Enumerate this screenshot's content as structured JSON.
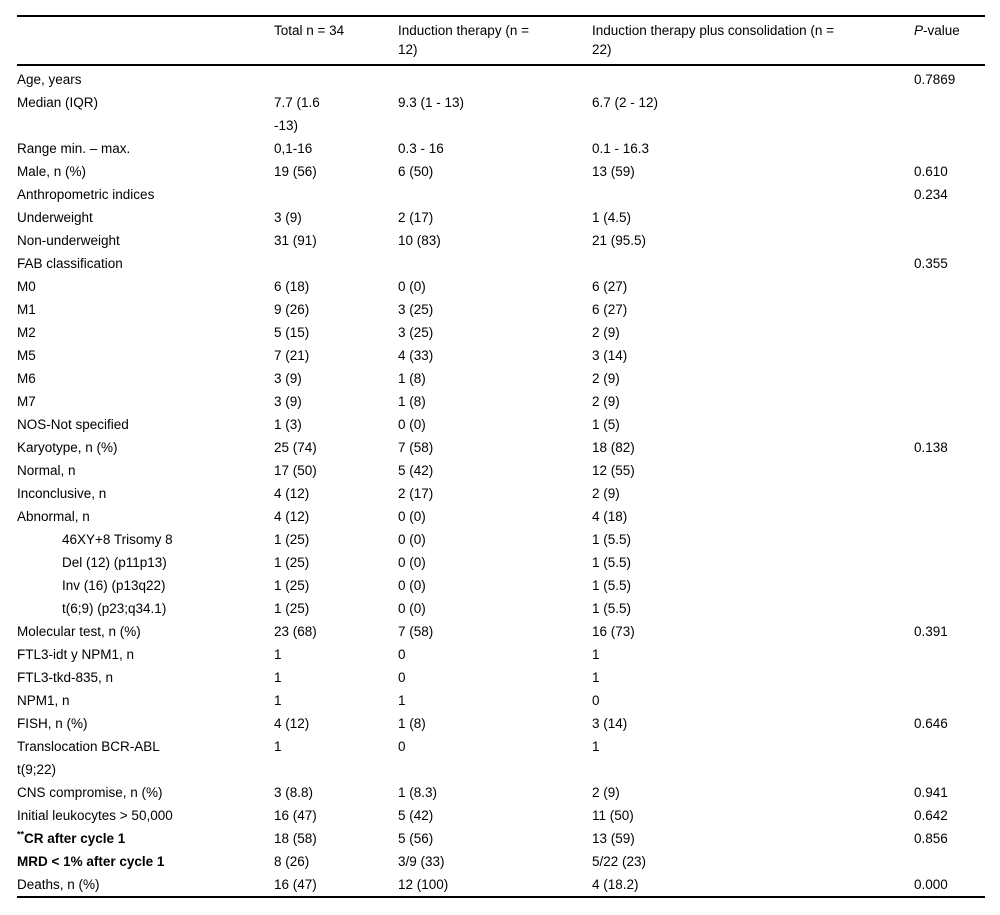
{
  "table": {
    "columns": {
      "label": "",
      "total": "Total n = 34",
      "induction": "Induction therapy (n =\n12)",
      "consolidation": "Induction therapy plus consolidation (n =\n22)"
    },
    "p_header": {
      "italic": "P",
      "rest": "-value"
    },
    "rows": [
      {
        "label": "Age, years",
        "total": "",
        "induction": "",
        "consolidation": "",
        "p": "0.7869"
      },
      {
        "label": "Median (IQR)",
        "total": "7.7 (1.6\n-13)",
        "induction": "9.3 (1 - 13)",
        "consolidation": "6.7 (2 - 12)",
        "p": ""
      },
      {
        "label": "Range min. – max.",
        "total": "0,1-16",
        "induction": "0.3 - 16",
        "consolidation": "0.1 - 16.3",
        "p": ""
      },
      {
        "label": "Male, n (%)",
        "total": "19 (56)",
        "induction": "6 (50)",
        "consolidation": "13 (59)",
        "p": "0.610"
      },
      {
        "label": "Anthropometric indices",
        "total": "",
        "induction": "",
        "consolidation": "",
        "p": "0.234"
      },
      {
        "label": "Underweight",
        "total": "3 (9)",
        "induction": "2 (17)",
        "consolidation": "1 (4.5)",
        "p": ""
      },
      {
        "label": "Non-underweight",
        "total": "31 (91)",
        "induction": "10 (83)",
        "consolidation": "21 (95.5)",
        "p": ""
      },
      {
        "label": "FAB classification",
        "total": "",
        "induction": "",
        "consolidation": "",
        "p": "0.355"
      },
      {
        "label": "M0",
        "total": "6 (18)",
        "induction": "0 (0)",
        "consolidation": "6 (27)",
        "p": ""
      },
      {
        "label": "M1",
        "total": "9 (26)",
        "induction": "3 (25)",
        "consolidation": "6 (27)",
        "p": ""
      },
      {
        "label": "M2",
        "total": "5 (15)",
        "induction": "3 (25)",
        "consolidation": "2 (9)",
        "p": ""
      },
      {
        "label": "M5",
        "total": "7 (21)",
        "induction": "4 (33)",
        "consolidation": "3 (14)",
        "p": ""
      },
      {
        "label": "M6",
        "total": "3 (9)",
        "induction": "1 (8)",
        "consolidation": "2 (9)",
        "p": ""
      },
      {
        "label": "M7",
        "total": "3 (9)",
        "induction": "1 (8)",
        "consolidation": "2 (9)",
        "p": ""
      },
      {
        "label": "NOS-Not specified",
        "total": "1 (3)",
        "induction": "0 (0)",
        "consolidation": "1 (5)",
        "p": ""
      },
      {
        "label": "Karyotype, n (%)",
        "total": "25 (74)",
        "induction": "7 (58)",
        "consolidation": "18 (82)",
        "p": "0.138"
      },
      {
        "label": "Normal, n",
        "total": "17 (50)",
        "induction": "5 (42)",
        "consolidation": "12 (55)",
        "p": ""
      },
      {
        "label": "Inconclusive, n",
        "total": "4 (12)",
        "induction": "2 (17)",
        "consolidation": "2 (9)",
        "p": ""
      },
      {
        "label": "Abnormal, n",
        "total": "4 (12)",
        "induction": "0 (0)",
        "consolidation": "4 (18)",
        "p": ""
      },
      {
        "label": "46XY+8 Trisomy 8",
        "indent": true,
        "total": "1 (25)",
        "induction": "0 (0)",
        "consolidation": "1 (5.5)",
        "p": ""
      },
      {
        "label": "Del (12) (p11p13)",
        "indent": true,
        "total": "1 (25)",
        "induction": "0 (0)",
        "consolidation": "1 (5.5)",
        "p": ""
      },
      {
        "label": "Inv (16) (p13q22)",
        "indent": true,
        "total": "1 (25)",
        "induction": "0 (0)",
        "consolidation": "1 (5.5)",
        "p": ""
      },
      {
        "label": "t(6;9) (p23;q34.1)",
        "indent": true,
        "total": "1 (25)",
        "induction": "0 (0)",
        "consolidation": "1 (5.5)",
        "p": ""
      },
      {
        "label": "Molecular test, n (%)",
        "total": "23 (68)",
        "induction": "7 (58)",
        "consolidation": "16 (73)",
        "p": "0.391"
      },
      {
        "label": "FTL3-idt y NPM1, n",
        "total": "1",
        "induction": "0",
        "consolidation": "1",
        "p": ""
      },
      {
        "label": "FTL3-tkd-835, n",
        "total": "1",
        "induction": "0",
        "consolidation": "1",
        "p": ""
      },
      {
        "label": "NPM1, n",
        "total": "1",
        "induction": "1",
        "consolidation": "0",
        "p": ""
      },
      {
        "label": "FISH, n (%)",
        "total": "4 (12)",
        "induction": "1 (8)",
        "consolidation": "3 (14)",
        "p": "0.646"
      },
      {
        "label": "Translocation BCR-ABL\nt(9;22)",
        "total": "1",
        "induction": "0",
        "consolidation": "1",
        "p": ""
      },
      {
        "label": "CNS compromise, n (%)",
        "total": "3 (8.8)",
        "induction": "1 (8.3)",
        "consolidation": "2 (9)",
        "p": "0.941"
      },
      {
        "label": "Initial leukocytes > 50,000",
        "total": "16 (47)",
        "induction": "5 (42)",
        "consolidation": "11 (50)",
        "p": "0.642"
      },
      {
        "label": "CR after cycle 1",
        "sup_prefix": "**",
        "bold": true,
        "total": "18 (58)",
        "induction": "5 (56)",
        "consolidation": "13 (59)",
        "p": "0.856"
      },
      {
        "label": "MRD < 1% after cycle 1",
        "bold": true,
        "total": "8 (26)",
        "induction": "3/9 (33)",
        "consolidation": "5/22 (23)",
        "p": ""
      },
      {
        "label": "Deaths, n (%)",
        "total": "16 (47)",
        "induction": "12 (100)",
        "consolidation": "4 (18.2)",
        "p": "0.000"
      }
    ]
  }
}
